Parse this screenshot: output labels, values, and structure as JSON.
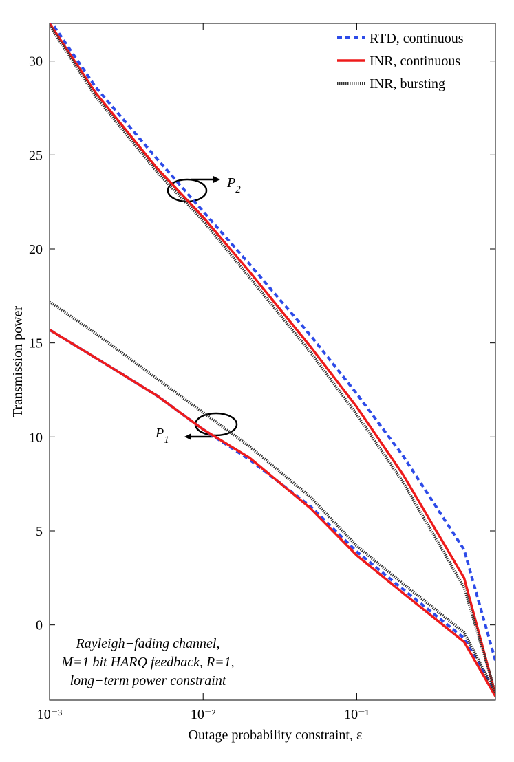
{
  "chart_data": {
    "type": "line",
    "xlabel": "Outage probability constraint, ε",
    "ylabel": "Transmission power",
    "xscale": "log",
    "xlim": [
      0.001,
      0.8
    ],
    "ylim": [
      -4,
      32
    ],
    "xticks": [
      {
        "value": 0.001,
        "label": "10⁻³"
      },
      {
        "value": 0.01,
        "label": "10⁻²"
      },
      {
        "value": 0.1,
        "label": "10⁻¹"
      }
    ],
    "yticks": [
      0,
      5,
      10,
      15,
      20,
      25,
      30
    ],
    "legend": "upper right",
    "x": [
      0.001,
      0.002,
      0.005,
      0.01,
      0.02,
      0.05,
      0.1,
      0.2,
      0.5,
      0.8
    ],
    "series": [
      {
        "name": "RTD, continuous",
        "color": "#2d4be8",
        "style": "dashed",
        "values_p2": [
          32.2,
          28.6,
          24.8,
          22.0,
          19.2,
          15.4,
          12.3,
          9.0,
          4.0,
          -1.9
        ],
        "values_p1": [
          15.7,
          14.2,
          12.2,
          10.4,
          8.8,
          6.3,
          3.9,
          1.9,
          -0.7,
          -3.6
        ]
      },
      {
        "name": "INR, continuous",
        "color": "#ee1b1b",
        "style": "solid",
        "values_p2": [
          32.0,
          28.3,
          24.3,
          21.7,
          18.8,
          14.8,
          11.6,
          8.0,
          2.5,
          -3.7
        ],
        "values_p1": [
          15.7,
          14.2,
          12.2,
          10.4,
          8.9,
          6.2,
          3.7,
          1.7,
          -0.9,
          -3.8
        ]
      },
      {
        "name": "INR, bursting",
        "color": "#333333",
        "style": "dotted",
        "values_p2": [
          31.9,
          28.1,
          24.1,
          21.5,
          18.5,
          14.5,
          11.2,
          7.6,
          2.0,
          -3.6
        ],
        "values_p1": [
          17.2,
          15.5,
          13.1,
          11.3,
          9.5,
          6.8,
          4.2,
          2.2,
          -0.4,
          -3.6
        ]
      }
    ],
    "annotations": [
      {
        "text": "P",
        "sub": "2"
      },
      {
        "text": "P",
        "sub": "1"
      }
    ],
    "note": [
      "Rayleigh−fading channel,",
      "M=1 bit HARQ feedback, R=1,",
      "long−term power constraint"
    ]
  }
}
